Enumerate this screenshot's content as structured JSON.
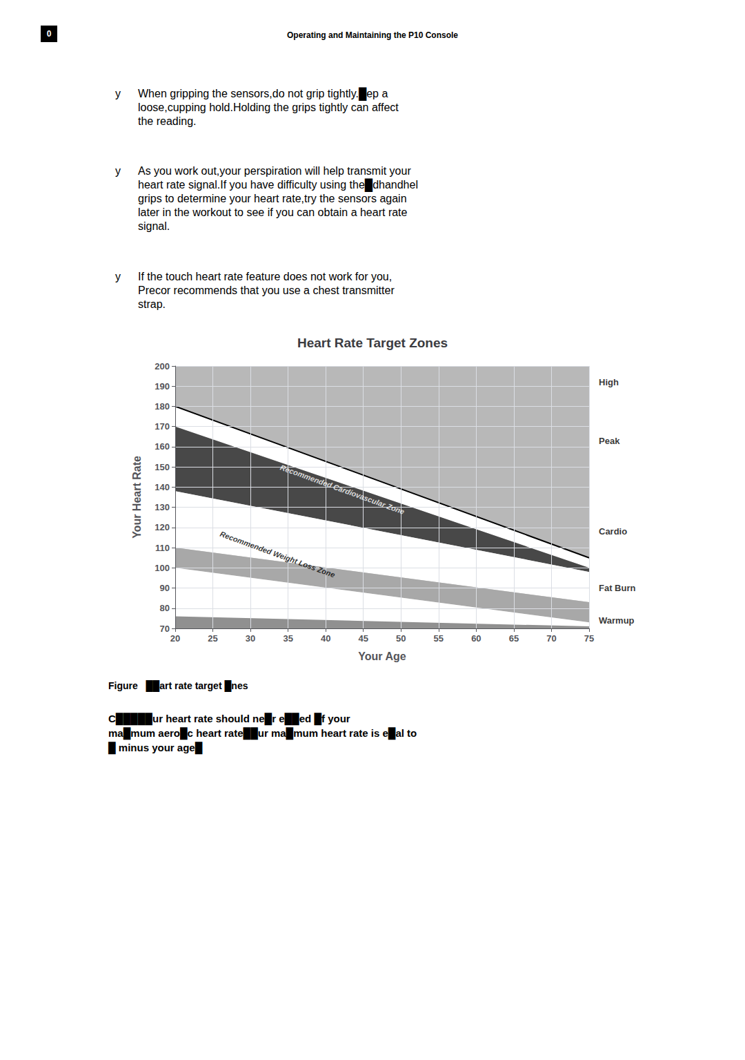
{
  "chart_data": {
    "type": "area",
    "title": "Heart Rate Target Zones",
    "xlabel": "Your Age",
    "ylabel": "Your Heart Rate",
    "x": [
      20,
      75
    ],
    "xlim": [
      20,
      75
    ],
    "ylim": [
      70,
      200
    ],
    "xticks": [
      20,
      25,
      30,
      35,
      40,
      45,
      50,
      55,
      60,
      65,
      70,
      75
    ],
    "yticks": [
      70,
      80,
      90,
      100,
      110,
      120,
      130,
      140,
      150,
      160,
      170,
      180,
      190,
      200
    ],
    "grid": true,
    "series": [
      {
        "type": "band",
        "color": "#c8c8c8",
        "lower": [
          70,
          70
        ],
        "upper": [
          200,
          200
        ]
      },
      {
        "type": "band",
        "color": "#b8b8b8",
        "lower": [
          180,
          105
        ],
        "upper": [
          200,
          200
        ]
      },
      {
        "type": "band",
        "color": "#ffffff",
        "lower": [
          170,
          100
        ],
        "upper": [
          180,
          105
        ]
      },
      {
        "type": "band",
        "color": "#484848",
        "lower": [
          138,
          98
        ],
        "upper": [
          170,
          100
        ]
      },
      {
        "type": "band",
        "color": "#ffffff",
        "lower": [
          110,
          83
        ],
        "upper": [
          138,
          98
        ]
      },
      {
        "type": "band",
        "color": "#a8a8a8",
        "lower": [
          100,
          73
        ],
        "upper": [
          110,
          83
        ]
      },
      {
        "type": "band",
        "color": "#ffffff",
        "lower": [
          70,
          70
        ],
        "upper": [
          100,
          73
        ]
      },
      {
        "type": "band",
        "color": "#909090",
        "lower": [
          70,
          70
        ],
        "upper": [
          76,
          71
        ]
      },
      {
        "type": "line",
        "color": "#000000",
        "values": [
          180,
          105
        ]
      }
    ],
    "annotations": [
      {
        "text": "Recommended Cardiovascular Zone",
        "x": 34,
        "y": 150,
        "color": "#ffffff"
      },
      {
        "text": "Recommended Weight Loss Zone",
        "x": 26,
        "y": 117,
        "color": "#000000"
      }
    ],
    "right_labels": [
      {
        "text": "High",
        "y": 192
      },
      {
        "text": "Peak",
        "y": 163
      },
      {
        "text": "Cardio",
        "y": 118
      },
      {
        "text": "Fat Burn",
        "y": 90
      },
      {
        "text": "Warmup",
        "y": 74
      }
    ]
  },
  "page_number": "0",
  "header": "Operating and Maintaining the P10 Console",
  "bullet_char": "y",
  "bullets": [
    "When gripping the sensors,do not grip tightly.█ep a\nloose,cupping hold.Holding the grips tightly can affect\nthe reading.",
    "As you work out,your perspiration will help transmit your\nheart rate signal.If you have difficulty using the█dhandhel\ngrips to determine your heart rate,try the sensors again\nlater in the workout to see if you can obtain a heart rate\nsignal.",
    "If the touch heart rate feature does not work for you,\nPrecor recommends that you use a chest transmitter\nstrap."
  ],
  "caption": "Figure   ██art rate target █nes",
  "caution": "C█████ur heart rate should ne█r e██ed █f your\nma█mum aero█c heart rate██ur ma█mum heart rate is e█al to\n█ minus your age█"
}
